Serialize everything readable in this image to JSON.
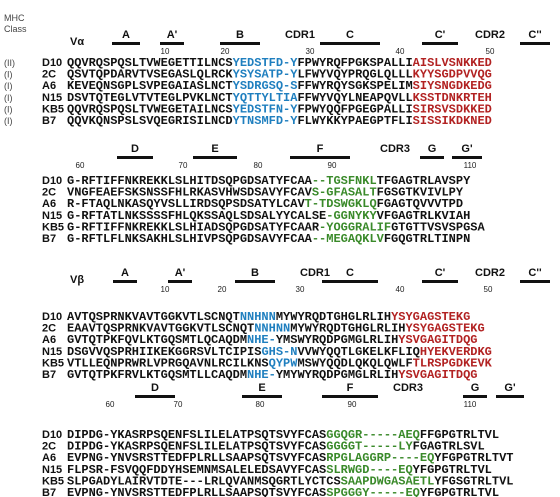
{
  "left_header": [
    "MHC",
    "Class"
  ],
  "classes": [
    "(II)",
    "(I)",
    "(I)",
    "(I)",
    "(I)",
    "(I)"
  ],
  "blocks": [
    {
      "domain": "Vα",
      "labels": [
        "A",
        "A'",
        "B",
        "CDR1",
        "C",
        "C'",
        "CDR2",
        "C''"
      ],
      "numbers": [
        10,
        20,
        30,
        40,
        50
      ],
      "rows": [
        {
          "name": "D10",
          "segments": [
            {
              "text": "QQVRQSPQSLTVWEGETTILNCS",
              "color": "#111111"
            },
            {
              "text": "YEDSTFD-Y",
              "color": "#1f7fbf"
            },
            {
              "text": "FPWYRQFPGKSPALLI",
              "color": "#111111"
            },
            {
              "text": "AISLVSNKKED",
              "color": "#b22222"
            }
          ]
        },
        {
          "name": "2C",
          "segments": [
            {
              "text": "QSVTQPDARVTVSEGASLQLRCK",
              "color": "#111111"
            },
            {
              "text": "YSYSATP-Y",
              "color": "#1f7fbf"
            },
            {
              "text": "LFWYVQYPRQGLQLLL",
              "color": "#111111"
            },
            {
              "text": "KYYSGDPVVQG",
              "color": "#b22222"
            }
          ]
        },
        {
          "name": "A6",
          "segments": [
            {
              "text": "KEVEQNSGPLSVPEGAIASLNCT",
              "color": "#111111"
            },
            {
              "text": "YSDRGSQ-S",
              "color": "#1f7fbf"
            },
            {
              "text": "FFWYRQYSGKSPELIM",
              "color": "#111111"
            },
            {
              "text": "SIYSNGDKEDG",
              "color": "#b22222"
            }
          ]
        },
        {
          "name": "N15",
          "segments": [
            {
              "text": "DSVTQTEGLVTVTEGLPVKLNCT",
              "color": "#111111"
            },
            {
              "text": "YQTTYLTIA",
              "color": "#1f7fbf"
            },
            {
              "text": "FFWYVQYLNEAPQVLL",
              "color": "#111111"
            },
            {
              "text": "KSSTDNKRTEH",
              "color": "#b22222"
            }
          ]
        },
        {
          "name": "KB5",
          "segments": [
            {
              "text": "QQVRQSPQSLTVWEGETAILNCS",
              "color": "#111111"
            },
            {
              "text": "YEDSTFN-Y",
              "color": "#1f7fbf"
            },
            {
              "text": "FPWYQQFPGEGPALLI",
              "color": "#111111"
            },
            {
              "text": "SIRSVSDKKED",
              "color": "#b22222"
            }
          ]
        },
        {
          "name": "B7",
          "segments": [
            {
              "text": "QQVKQNSPSLSVQEGRISILNCD",
              "color": "#111111"
            },
            {
              "text": "YTNSMFD-Y",
              "color": "#1f7fbf"
            },
            {
              "text": "FLWYKKYPAEGPTFLI",
              "color": "#111111"
            },
            {
              "text": "SISSIKDKNED",
              "color": "#b22222"
            }
          ]
        }
      ]
    },
    {
      "labels": [
        "D",
        "E",
        "F",
        "CDR3",
        "G",
        "G'"
      ],
      "numbers": [
        60,
        70,
        80,
        90,
        110
      ],
      "rows": [
        {
          "name": "D10",
          "segments": [
            {
              "text": "G-RFTIFFNKREKKLSLHITDSQPGDSATYFCAA",
              "color": "#111111"
            },
            {
              "text": "--TGSFNKL",
              "color": "#3a8a2a"
            },
            {
              "text": "TFGAGTRLAVSPY",
              "color": "#111111"
            }
          ]
        },
        {
          "name": "2C",
          "segments": [
            {
              "text": "VNGFEAEFSKSNSSFHLRKASVHWSDSAVYFCAV",
              "color": "#111111"
            },
            {
              "text": "S-GFASALT",
              "color": "#3a8a2a"
            },
            {
              "text": "FGSGTKVIVLPY",
              "color": "#111111"
            }
          ]
        },
        {
          "name": "A6",
          "segments": [
            {
              "text": "R-FTAQLNKASQYVSLLIRDSQPSDSATYLCAV",
              "color": "#111111"
            },
            {
              "text": "T-TDSWGKLQ",
              "color": "#3a8a2a"
            },
            {
              "text": "FGAGTQVVVTPD",
              "color": "#111111"
            }
          ]
        },
        {
          "name": "N15",
          "segments": [
            {
              "text": "G-RFTATLNKSSSSFHLQKSSAQLSDSALYYCALSE",
              "color": "#111111"
            },
            {
              "text": "-GGNYKY",
              "color": "#3a8a2a"
            },
            {
              "text": "VFGAGTRLKVIAH",
              "color": "#111111"
            }
          ]
        },
        {
          "name": "KB5",
          "segments": [
            {
              "text": "G-RFTIFFNKREKKLSLHIADSQPGDSATYFCAAR",
              "color": "#111111"
            },
            {
              "text": "-YOGGRALIF",
              "color": "#3a8a2a"
            },
            {
              "text": "GTGTTVSVSPGSA",
              "color": "#111111"
            }
          ]
        },
        {
          "name": "B7",
          "segments": [
            {
              "text": "G-RFTLFLNKSAKHLSLHIVPSQPGDSAVYFCAA",
              "color": "#111111"
            },
            {
              "text": "--MEGAQKLV",
              "color": "#3a8a2a"
            },
            {
              "text": "FGQGTRLTINPN",
              "color": "#111111"
            }
          ]
        }
      ]
    },
    {
      "domain": "Vβ",
      "labels": [
        "A",
        "A'",
        "B",
        "CDR1",
        "C",
        "C'",
        "CDR2",
        "C''"
      ],
      "numbers": [
        10,
        20,
        30,
        40,
        50
      ],
      "rows": [
        {
          "name": "D10",
          "segments": [
            {
              "text": "AVTQSPRNKVAVTGGKVTLSCNQT",
              "color": "#111111"
            },
            {
              "text": "NNHNN",
              "color": "#1f7fbf"
            },
            {
              "text": "MYWYRQDTGHGLRLIH",
              "color": "#111111"
            },
            {
              "text": "YSYGAGSTEKG",
              "color": "#b22222"
            }
          ]
        },
        {
          "name": "2C",
          "segments": [
            {
              "text": "EAAVTQSPRNKVAVTGGKVTLSCNQT",
              "color": "#111111"
            },
            {
              "text": "NNHNN",
              "color": "#1f7fbf"
            },
            {
              "text": "MYWYRQDTGHGLRLIH",
              "color": "#111111"
            },
            {
              "text": "YSYGAGSTEKG",
              "color": "#b22222"
            }
          ]
        },
        {
          "name": "A6",
          "segments": [
            {
              "text": "GVTQTPKFQVLKTGQSMTLQCAQDM",
              "color": "#111111"
            },
            {
              "text": "NHE-",
              "color": "#1f7fbf"
            },
            {
              "text": "YMSWYRQDPGMGLRLIH",
              "color": "#111111"
            },
            {
              "text": "YSVGAGITDQG",
              "color": "#b22222"
            }
          ]
        },
        {
          "name": "N15",
          "segments": [
            {
              "text": "DSGVVQSPRHIIKEKGGRSVLTCIPIS",
              "color": "#111111"
            },
            {
              "text": "GHS-N",
              "color": "#1f7fbf"
            },
            {
              "text": "VVWYQQTLGKELKFLIQ",
              "color": "#111111"
            },
            {
              "text": "HYEKVERDKG",
              "color": "#b22222"
            }
          ]
        },
        {
          "name": "KB5",
          "segments": [
            {
              "text": "VTLLEQNPRWRLVPRGQAVNLRCILKNS",
              "color": "#111111"
            },
            {
              "text": "QYPW",
              "color": "#1f7fbf"
            },
            {
              "text": "MSWYQQDLQKQLQWLF",
              "color": "#111111"
            },
            {
              "text": "TLRSPGDKEVK",
              "color": "#b22222"
            }
          ]
        },
        {
          "name": "B7",
          "segments": [
            {
              "text": "GVTQTPKFRVLKTGQSMTLLCAQDM",
              "color": "#111111"
            },
            {
              "text": "NHE-",
              "color": "#1f7fbf"
            },
            {
              "text": "YMYWYRQDPGMGLRLIH",
              "color": "#111111"
            },
            {
              "text": "YSVGAGITDQG",
              "color": "#b22222"
            }
          ]
        }
      ]
    },
    {
      "labels": [
        "D",
        "E",
        "F",
        "CDR3",
        "G",
        "G'"
      ],
      "numbers": [
        60,
        70,
        80,
        90,
        110
      ],
      "rows": [
        {
          "name": "D10",
          "segments": [
            {
              "text": "DIPDG-YKASRPSQENFSLILELATPSQTSVYFCAS",
              "color": "#111111"
            },
            {
              "text": "GGQGR-----AEQ",
              "color": "#3a8a2a"
            },
            {
              "text": "FFGPGTRLTVL",
              "color": "#111111"
            }
          ]
        },
        {
          "name": "2C",
          "segments": [
            {
              "text": "DIPDG-YKASRPSQENFSLILELATPSQTSVYFCAS",
              "color": "#111111"
            },
            {
              "text": "GGGGT-----LY",
              "color": "#3a8a2a"
            },
            {
              "text": "FGAGTRLSVL",
              "color": "#111111"
            }
          ]
        },
        {
          "name": "A6",
          "segments": [
            {
              "text": "EVPNG-YNVSRSTTEDFPLRLLSAAPSQTSVYFCAS",
              "color": "#111111"
            },
            {
              "text": "RPGLAGGRP----EQ",
              "color": "#3a8a2a"
            },
            {
              "text": "YFGPGTRLTVT",
              "color": "#111111"
            }
          ]
        },
        {
          "name": "N15",
          "segments": [
            {
              "text": "FLPSR-FSVQQFDDYHSEMNMSALELEDSAVYFCAS",
              "color": "#111111"
            },
            {
              "text": "SLRWGD----EQ",
              "color": "#3a8a2a"
            },
            {
              "text": "YFGPGTRLTVL",
              "color": "#111111"
            }
          ]
        },
        {
          "name": "KB5",
          "segments": [
            {
              "text": "SLPGADYLAIRVTDTE---LRLQVANMSQGRTLYCTCS",
              "color": "#111111"
            },
            {
              "text": "SAAPDWGASAETL",
              "color": "#3a8a2a"
            },
            {
              "text": "YFGSGTRLTVL",
              "color": "#111111"
            }
          ]
        },
        {
          "name": "B7",
          "segments": [
            {
              "text": "EVPNG-YNVSRSTTEDFPLRLLSAAPSQTSVYFCAS",
              "color": "#111111"
            },
            {
              "text": "SPGGGY-----EQ",
              "color": "#3a8a2a"
            },
            {
              "text": "YFGPGTRLTVL",
              "color": "#111111"
            }
          ]
        }
      ]
    }
  ]
}
